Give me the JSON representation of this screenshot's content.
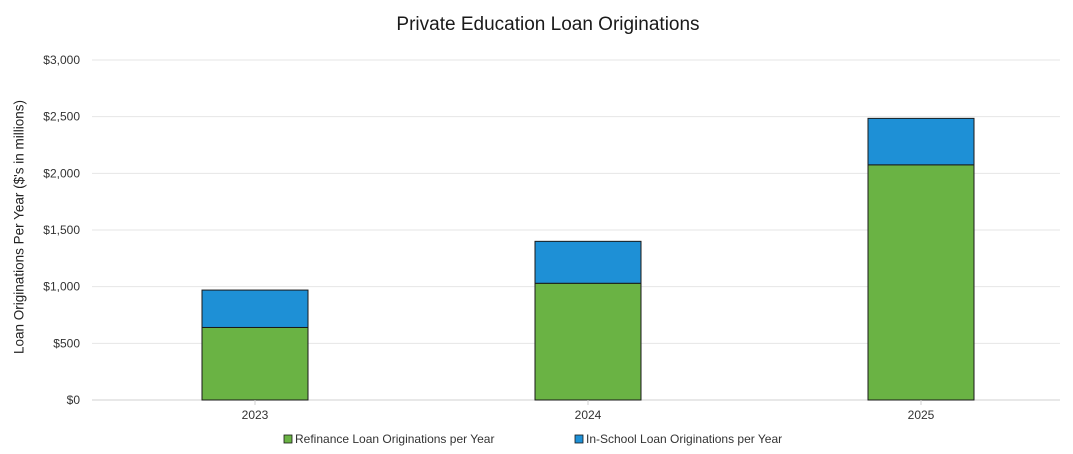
{
  "chart_data": {
    "type": "bar",
    "stacked": true,
    "title": "Private Education Loan Originations",
    "xlabel": "",
    "ylabel": "Loan Originations Per Year ($'s in millions)",
    "categories": [
      "2023",
      "2024",
      "2025"
    ],
    "series": [
      {
        "name": "Refinance Loan Originations per Year",
        "values": [
          640,
          1030,
          2075
        ],
        "color": "#6ab344"
      },
      {
        "name": "In-School Loan Originations per Year",
        "values": [
          330,
          370,
          410
        ],
        "color": "#1e90d6"
      }
    ],
    "ylim": [
      0,
      3000
    ],
    "yticks": [
      "$0",
      "$500",
      "$1,000",
      "$1,500",
      "$2,000",
      "$2,500",
      "$3,000"
    ],
    "grid": true,
    "legend_position": "bottom"
  }
}
